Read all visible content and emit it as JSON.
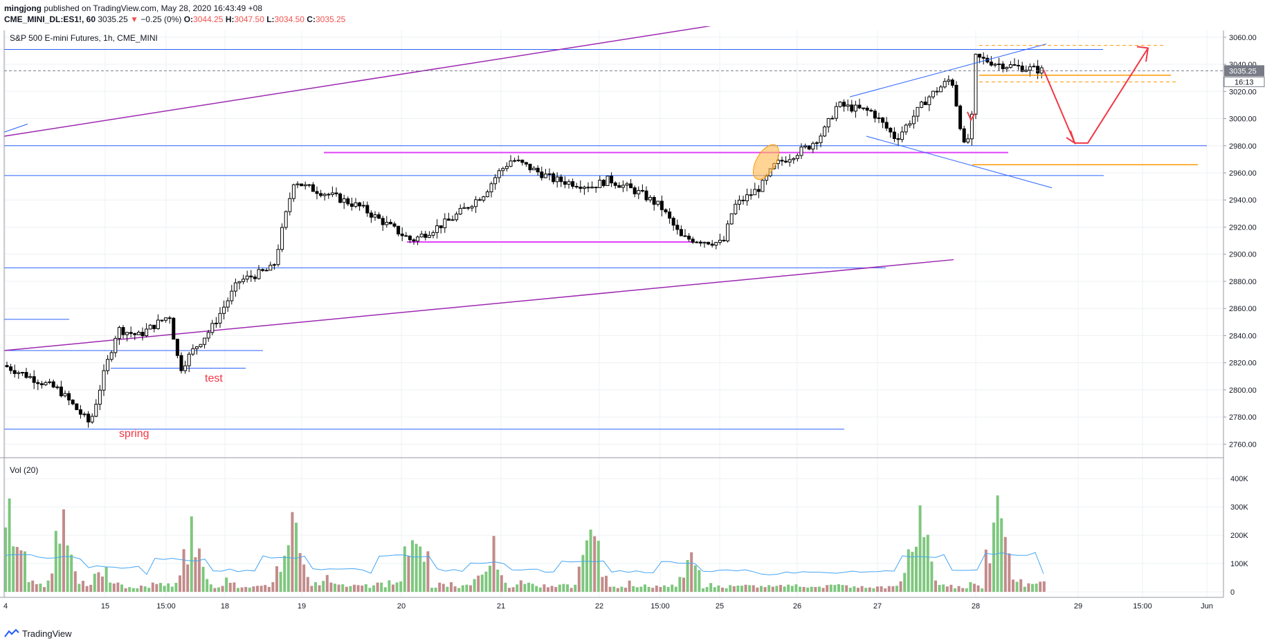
{
  "header": {
    "author": "mingjong",
    "published_text": "published on TradingView.com, May 28, 2020 16:43:49 +08",
    "symbol_line": "CME_MINI_DL:ES1!, 60",
    "last": "3035.25",
    "change": "−0.25 (0%)",
    "ohlc_o_label": "O:",
    "ohlc_o": "3044.25",
    "ohlc_h_label": "H:",
    "ohlc_h": "3047.50",
    "ohlc_l_label": "L:",
    "ohlc_l": "3034.50",
    "ohlc_c_label": "C:",
    "ohlc_c": "3035.25"
  },
  "footer": {
    "brand": "TradingView"
  },
  "colors": {
    "up": "#26a69a",
    "down": "#ef5350",
    "candle": "#000000",
    "vol_up": "#7ec77e",
    "vol_down": "#c38b8b",
    "ma": "#42a5f5",
    "hline": "#2962ff",
    "magenta": "#e040fb",
    "purple": "#9c27b0",
    "annotation": "#f23645",
    "orange": "#ff9800"
  },
  "chart_data": [
    {
      "type": "candlestick",
      "title": "S&P 500 E-mini Futures, 1h, CME_MINI",
      "yaxis": {
        "min": 2750,
        "max": 3065,
        "ticks": [
          "3060.00",
          "3040.00",
          "3020.00",
          "3000.00",
          "2980.00",
          "2960.00",
          "2940.00",
          "2920.00",
          "2900.00",
          "2880.00",
          "2860.00",
          "2840.00",
          "2820.00",
          "2800.00",
          "2780.00",
          "2760.00"
        ]
      },
      "xaxis": {
        "ticks": [
          "4",
          "15",
          "15:00",
          "18",
          "19",
          "20",
          "21",
          "22",
          "15:00",
          "25",
          "26",
          "27",
          "28",
          "29",
          "15:00",
          "Jun"
        ]
      },
      "last_price_label": "3035.25",
      "countdown_label": "16:13",
      "annotations": [
        {
          "type": "text",
          "text": "test",
          "color": "#f23645"
        },
        {
          "type": "text",
          "text": "spring",
          "color": "#f23645"
        }
      ],
      "close_path": [
        {
          "date": "May 14",
          "close": 2818
        },
        {
          "date": "May 14",
          "close": 2800
        },
        {
          "date": "May 14",
          "close": 2775
        },
        {
          "date": "May 15",
          "close": 2815
        },
        {
          "date": "May 15",
          "close": 2845
        },
        {
          "date": "May 15",
          "close": 2840
        },
        {
          "date": "May 15",
          "close": 2855
        },
        {
          "date": "May 17",
          "close": 2815
        },
        {
          "date": "May 17",
          "close": 2830
        },
        {
          "date": "May 18",
          "close": 2845
        },
        {
          "date": "May 18",
          "close": 2880
        },
        {
          "date": "May 18",
          "close": 2890
        },
        {
          "date": "May 19",
          "close": 2955
        },
        {
          "date": "May 19",
          "close": 2950
        },
        {
          "date": "May 19",
          "close": 2945
        },
        {
          "date": "May 20",
          "close": 2935
        },
        {
          "date": "May 20",
          "close": 2910
        },
        {
          "date": "May 20",
          "close": 2925
        },
        {
          "date": "May 20",
          "close": 2945
        },
        {
          "date": "May 21",
          "close": 2960
        },
        {
          "date": "May 21",
          "close": 2970
        },
        {
          "date": "May 21",
          "close": 2955
        },
        {
          "date": "May 21",
          "close": 2950
        },
        {
          "date": "May 22",
          "close": 2955
        },
        {
          "date": "May 22",
          "close": 2945
        },
        {
          "date": "May 22",
          "close": 2935
        },
        {
          "date": "May 22",
          "close": 2912
        },
        {
          "date": "May 22",
          "close": 2908
        },
        {
          "date": "May 25",
          "close": 2935
        },
        {
          "date": "May 25",
          "close": 2950
        },
        {
          "date": "May 25",
          "close": 2966
        },
        {
          "date": "May 26",
          "close": 2980
        },
        {
          "date": "May 26",
          "close": 2990
        },
        {
          "date": "May 26",
          "close": 3010
        },
        {
          "date": "May 27",
          "close": 3005
        },
        {
          "date": "May 27",
          "close": 2985
        },
        {
          "date": "May 27",
          "close": 3015
        },
        {
          "date": "May 27",
          "close": 3030
        },
        {
          "date": "May 28",
          "close": 2975
        },
        {
          "date": "May 28",
          "close": 3010
        },
        {
          "date": "May 28",
          "close": 3045
        },
        {
          "date": "May 28",
          "close": 3040
        },
        {
          "date": "May 28",
          "close": 3035
        }
      ]
    },
    {
      "type": "bar",
      "title": "Vol (20)",
      "yaxis": {
        "min": 0,
        "max": 420000,
        "ticks": [
          "400K",
          "300K",
          "200K",
          "100K",
          "0"
        ]
      },
      "series": [
        {
          "name": "Vol (20)"
        }
      ],
      "volume_profile": [
        {
          "date": "May 14",
          "volume": 380000
        },
        {
          "date": "May 15",
          "volume": 300000
        },
        {
          "date": "May 15",
          "volume": 110000
        },
        {
          "date": "May 17",
          "volume": 260000
        },
        {
          "date": "May 18",
          "volume": 60000
        },
        {
          "date": "May 19",
          "volume": 310000
        },
        {
          "date": "May 19",
          "volume": 60000
        },
        {
          "date": "May 20",
          "volume": 340000
        },
        {
          "date": "May 20",
          "volume": 60000
        },
        {
          "date": "May 21",
          "volume": 220000
        },
        {
          "date": "May 21",
          "volume": 50000
        },
        {
          "date": "May 22",
          "volume": 250000
        },
        {
          "date": "May 22",
          "volume": 40000
        },
        {
          "date": "May 22",
          "volume": 210000
        },
        {
          "date": "May 25",
          "volume": 40000
        },
        {
          "date": "May 26",
          "volume": 30000
        },
        {
          "date": "May 27",
          "volume": 340000
        },
        {
          "date": "May 27",
          "volume": 40000
        },
        {
          "date": "May 28",
          "volume": 380000
        },
        {
          "date": "May 28",
          "volume": 60000
        }
      ]
    }
  ]
}
